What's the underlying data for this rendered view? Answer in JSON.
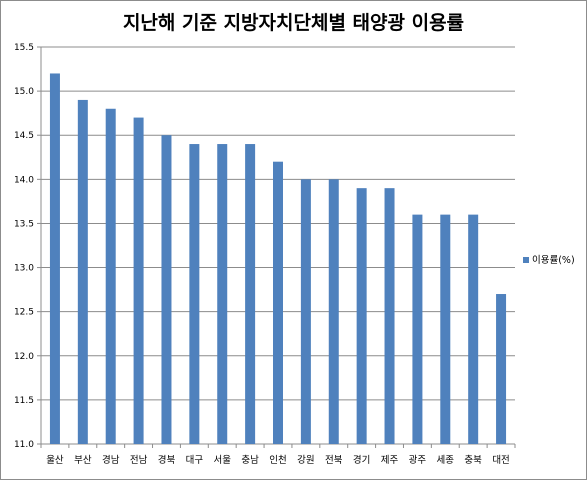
{
  "colors": {
    "bar": "#4f81bd",
    "grid": "#8c8c8c",
    "axis": "#8c8c8c"
  },
  "chart_data": {
    "type": "bar",
    "title": "지난해 기준 지방자치단체별 태양광 이용률",
    "categories": [
      "울산",
      "부산",
      "경남",
      "전남",
      "경북",
      "대구",
      "서울",
      "충남",
      "인천",
      "강원",
      "전북",
      "경기",
      "제주",
      "광주",
      "세종",
      "충북",
      "대전"
    ],
    "series": [
      {
        "name": "이용률(%)",
        "values": [
          15.2,
          14.9,
          14.8,
          14.7,
          14.5,
          14.4,
          14.4,
          14.4,
          14.2,
          14.0,
          14.0,
          13.9,
          13.9,
          13.6,
          13.6,
          13.6,
          12.7
        ]
      }
    ],
    "ylim": [
      11.0,
      15.5
    ],
    "yticks": [
      "11.0",
      "11.5",
      "12.0",
      "12.5",
      "13.0",
      "13.5",
      "14.0",
      "14.5",
      "15.0",
      "15.5"
    ],
    "grid": true,
    "legend_position": "right"
  }
}
